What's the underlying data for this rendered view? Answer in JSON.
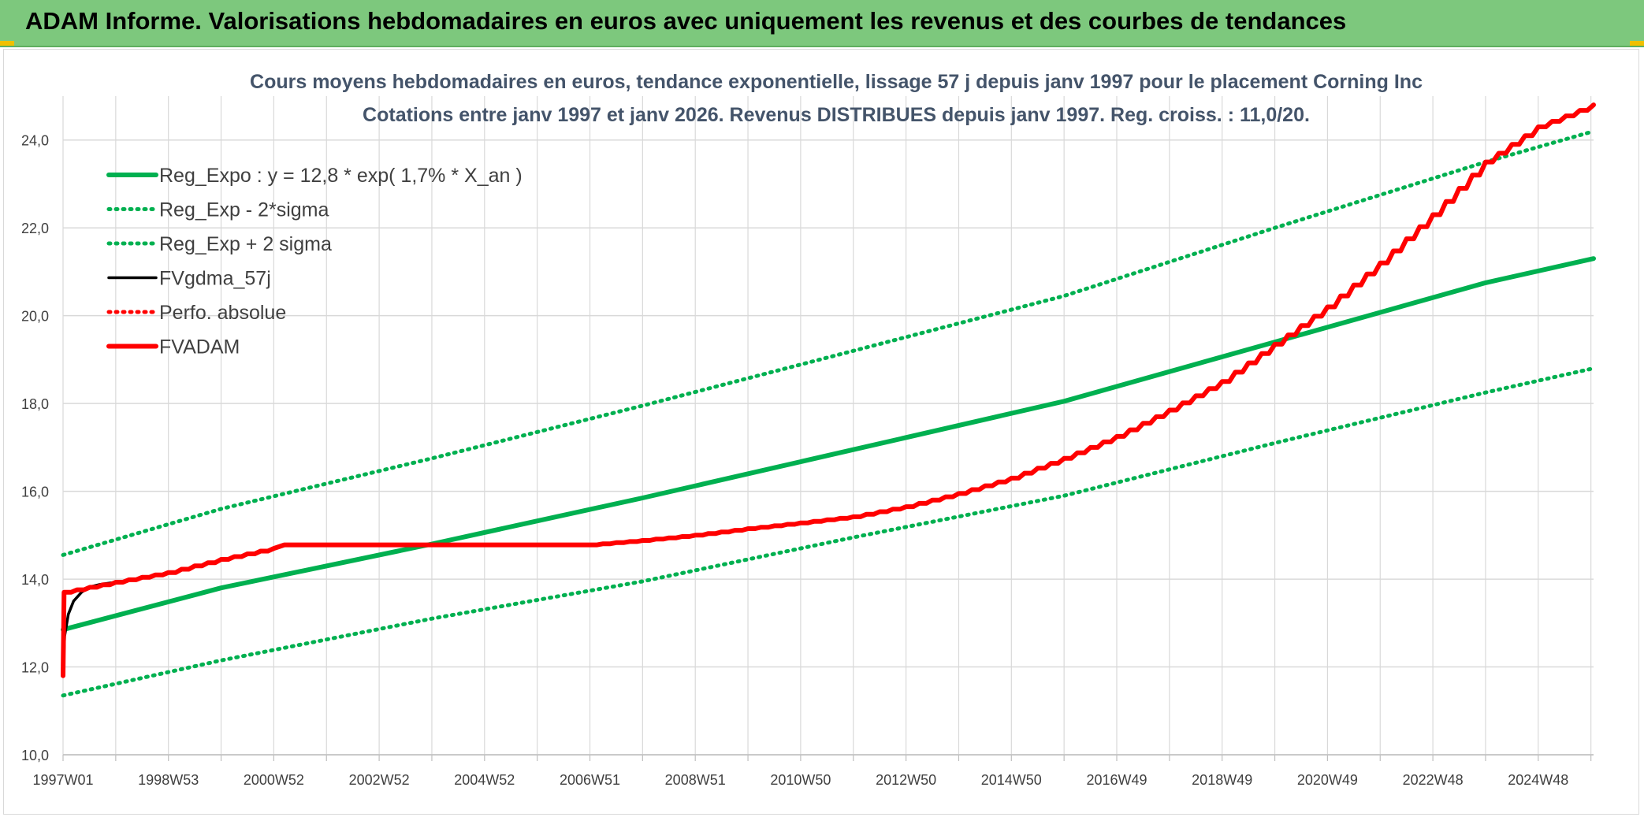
{
  "header": {
    "title": "ADAM Informe. Valorisations hebdomadaires en euros avec uniquement les revenus et des courbes de tendances"
  },
  "colors": {
    "header_bg": "#7dc87d",
    "reg_green": "#00b050",
    "black": "#000000",
    "red": "#ff0000",
    "grid": "#d9d9d9",
    "title_color": "#44546a"
  },
  "chart_data": {
    "type": "line",
    "title_lines": [
      "Cours moyens hebdomadaires en euros, tendance exponentielle, lissage 57 j depuis janv 1997 pour le placement Corning Inc",
      "Cotations entre janv 1997 et janv 2026. Revenus DISTRIBUES depuis janv 1997. Reg. croiss. : 11,0/20."
    ],
    "x_range": [
      1997.0,
      2026.05
    ],
    "x_tick_labels": [
      "1997W01",
      "1998W53",
      "2000W52",
      "2002W52",
      "2004W52",
      "2006W51",
      "2008W51",
      "2010W50",
      "2012W50",
      "2014W50",
      "2016W49",
      "2018W49",
      "2020W49",
      "2022W48",
      "2024W48"
    ],
    "y_range": [
      10.0,
      25.0
    ],
    "y_ticks": [
      "10,0",
      "12,0",
      "14,0",
      "16,0",
      "18,0",
      "20,0",
      "22,0",
      "24,0"
    ],
    "grid": true,
    "legend_position": "top-left",
    "series": [
      {
        "name": "Reg_Expo : y = 12,8 * exp( 1,7% *  X_an )",
        "style": "solid-thick",
        "color": "#00b050",
        "points": [
          [
            1997.0,
            12.85
          ],
          [
            2000.0,
            13.8
          ],
          [
            2004.0,
            14.8
          ],
          [
            2008.0,
            15.85
          ],
          [
            2012.0,
            16.95
          ],
          [
            2016.0,
            18.05
          ],
          [
            2020.0,
            19.4
          ],
          [
            2024.0,
            20.75
          ],
          [
            2026.05,
            21.3
          ]
        ]
      },
      {
        "name": "Reg_Exp - 2*sigma",
        "style": "dotted",
        "color": "#00b050",
        "points": [
          [
            1997.0,
            11.35
          ],
          [
            2000.0,
            12.15
          ],
          [
            2004.0,
            13.1
          ],
          [
            2008.0,
            13.95
          ],
          [
            2012.0,
            14.95
          ],
          [
            2016.0,
            15.9
          ],
          [
            2020.0,
            17.1
          ],
          [
            2024.0,
            18.25
          ],
          [
            2026.05,
            18.8
          ]
        ]
      },
      {
        "name": "Reg_Exp + 2 sigma",
        "style": "dotted",
        "color": "#00b050",
        "points": [
          [
            1997.0,
            14.55
          ],
          [
            2000.0,
            15.6
          ],
          [
            2004.0,
            16.75
          ],
          [
            2008.0,
            17.95
          ],
          [
            2012.0,
            19.2
          ],
          [
            2016.0,
            20.45
          ],
          [
            2020.0,
            22.0
          ],
          [
            2024.0,
            23.5
          ],
          [
            2026.05,
            24.2
          ]
        ]
      },
      {
        "name": "FVgdma_57j",
        "style": "solid",
        "color": "#000000",
        "points": [
          [
            1997.0,
            11.8
          ],
          [
            1997.03,
            12.7
          ],
          [
            1997.1,
            13.2
          ],
          [
            1997.2,
            13.5
          ],
          [
            1997.35,
            13.7
          ],
          [
            1997.5,
            13.82
          ],
          [
            1997.7,
            13.88
          ],
          [
            1998.0,
            13.93
          ]
        ]
      },
      {
        "name": "Perfo. absolue",
        "style": "dotted",
        "color": "#ff0000",
        "points": []
      },
      {
        "name": "FVADAM",
        "style": "solid-thick-stepped",
        "color": "#ff0000",
        "points": [
          [
            1997.0,
            11.8
          ],
          [
            1997.02,
            13.7
          ],
          [
            1998.0,
            13.93
          ],
          [
            1999.0,
            14.15
          ],
          [
            2000.0,
            14.45
          ],
          [
            2001.0,
            14.7
          ],
          [
            2001.2,
            14.78
          ],
          [
            2004.0,
            14.78
          ],
          [
            2007.0,
            14.78
          ],
          [
            2008.0,
            14.88
          ],
          [
            2009.0,
            15.0
          ],
          [
            2010.0,
            15.15
          ],
          [
            2011.0,
            15.28
          ],
          [
            2012.0,
            15.42
          ],
          [
            2013.0,
            15.65
          ],
          [
            2014.0,
            15.95
          ],
          [
            2015.0,
            16.3
          ],
          [
            2016.0,
            16.75
          ],
          [
            2017.0,
            17.25
          ],
          [
            2018.0,
            17.85
          ],
          [
            2019.0,
            18.5
          ],
          [
            2020.0,
            19.35
          ],
          [
            2021.0,
            20.2
          ],
          [
            2022.0,
            21.2
          ],
          [
            2023.0,
            22.3
          ],
          [
            2024.0,
            23.5
          ],
          [
            2025.0,
            24.3
          ],
          [
            2026.05,
            24.8
          ]
        ]
      }
    ]
  }
}
